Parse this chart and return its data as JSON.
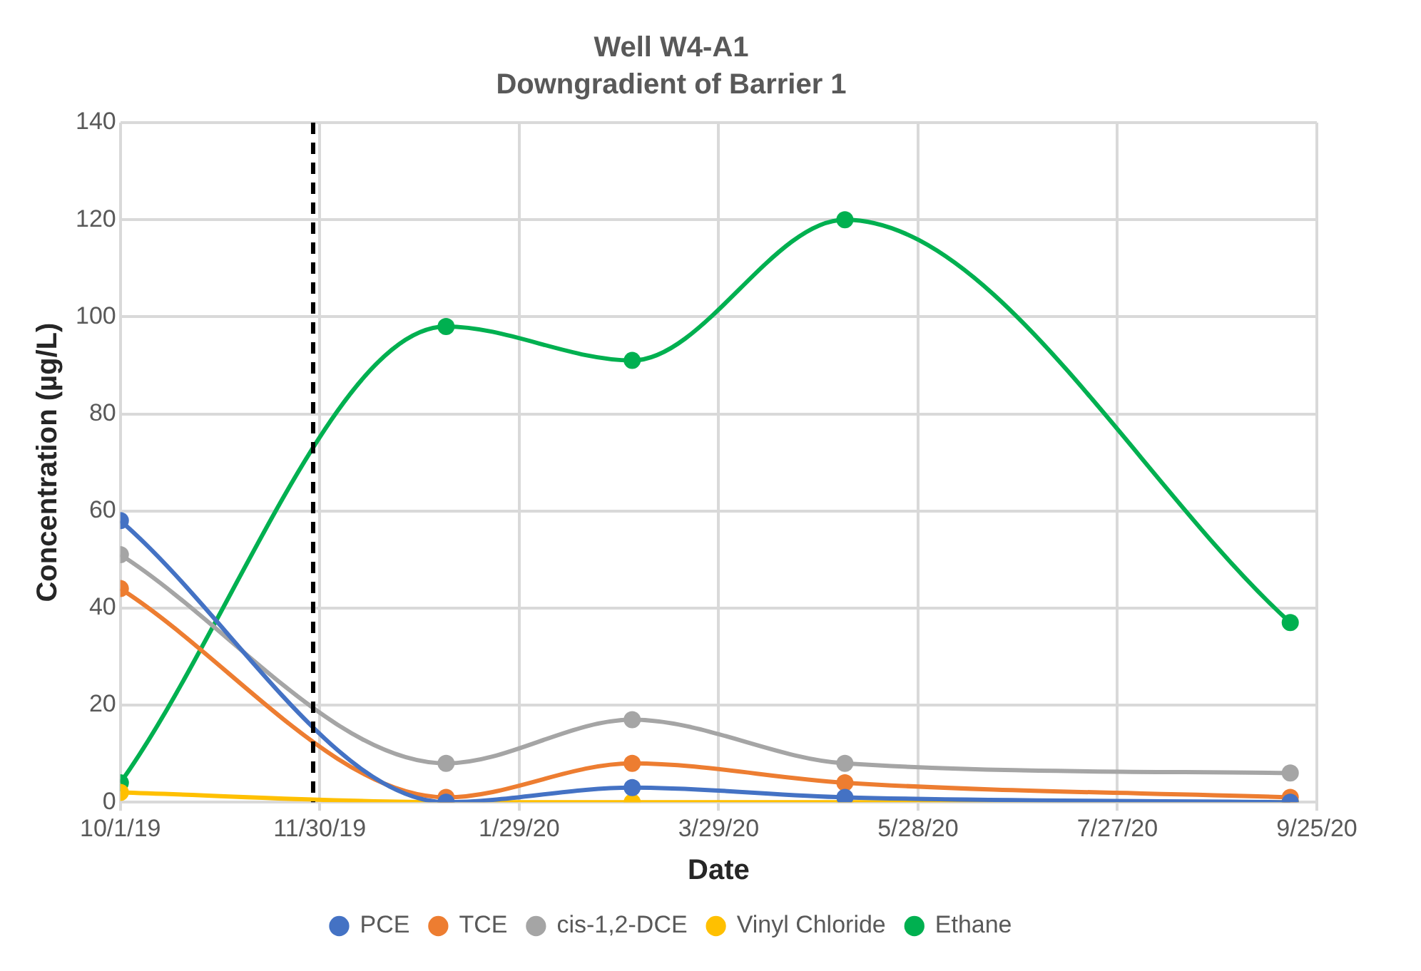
{
  "chart_data": {
    "type": "line",
    "title": "Well W4-A1",
    "subtitle": "Downgradient of Barrier 1",
    "xlabel": "Date",
    "ylabel": "Concentration (µg/L)",
    "x": [
      "2019-10-01",
      "2020-01-07",
      "2020-03-03",
      "2020-05-06",
      "2020-09-17"
    ],
    "series": [
      {
        "name": "PCE",
        "color": "#4472c4",
        "values": [
          58,
          0,
          3,
          1,
          0
        ]
      },
      {
        "name": "TCE",
        "color": "#ed7d31",
        "values": [
          44,
          1,
          8,
          4,
          1
        ]
      },
      {
        "name": "cis-1,2-DCE",
        "color": "#a5a5a5",
        "values": [
          51,
          8,
          17,
          8,
          6
        ]
      },
      {
        "name": "Vinyl Chloride",
        "color": "#ffc000",
        "values": [
          2,
          0,
          0,
          0,
          0
        ]
      },
      {
        "name": "Ethane",
        "color": "#00b050",
        "values": [
          4,
          98,
          91,
          120,
          37
        ]
      }
    ],
    "xlim": [
      "2019-10-01",
      "2020-09-25"
    ],
    "xticks": [
      {
        "value": "2019-10-01",
        "label": "10/1/19"
      },
      {
        "value": "2019-11-30",
        "label": "11/30/19"
      },
      {
        "value": "2020-01-29",
        "label": "1/29/20"
      },
      {
        "value": "2020-03-29",
        "label": "3/29/20"
      },
      {
        "value": "2020-05-28",
        "label": "5/28/20"
      },
      {
        "value": "2020-07-27",
        "label": "7/27/20"
      },
      {
        "value": "2020-09-25",
        "label": "9/25/20"
      }
    ],
    "ylim": [
      0,
      140
    ],
    "yticks": [
      0,
      20,
      40,
      60,
      80,
      100,
      120,
      140
    ],
    "ref_lines": [
      {
        "axis": "x",
        "value": "2019-11-28",
        "color": "#000000",
        "line_style": "dashed"
      }
    ],
    "grid": true,
    "legend": "bottom",
    "marker": "circle",
    "line_style": "solid"
  }
}
